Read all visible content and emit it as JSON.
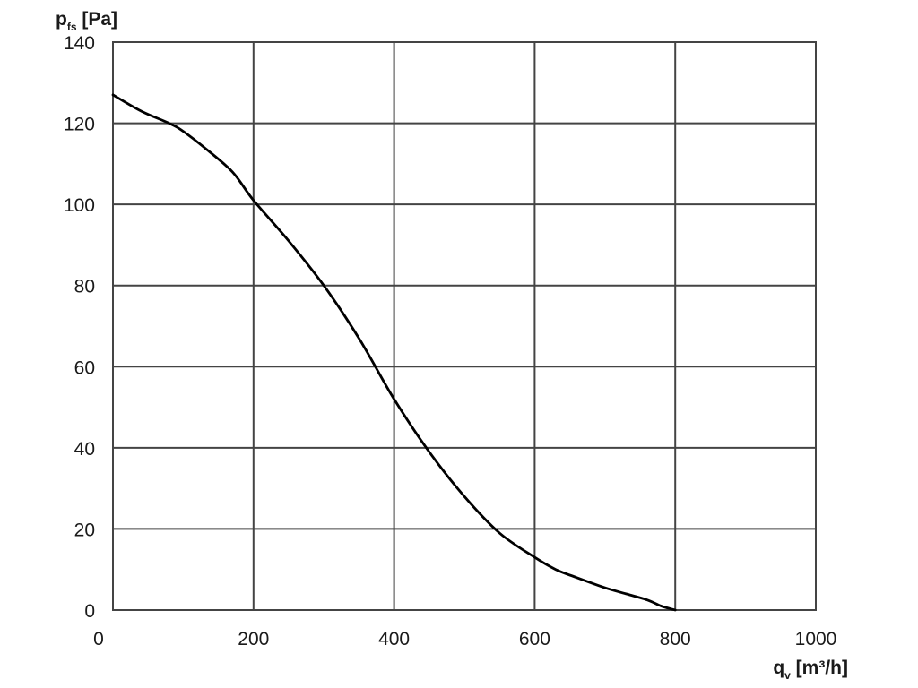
{
  "chart_data": {
    "type": "line",
    "ylabel": {
      "main": "p",
      "sub": "fs",
      "unit": " [Pa]"
    },
    "xlabel": {
      "main": "q",
      "sub": "v",
      "unit": " [m³/h]"
    },
    "xlim": [
      0,
      1000
    ],
    "ylim": [
      0,
      140
    ],
    "x_ticks": [
      "0",
      "200",
      "400",
      "600",
      "800",
      "1000"
    ],
    "y_ticks": [
      "0",
      "20",
      "40",
      "60",
      "80",
      "100",
      "120",
      "140"
    ],
    "grid": true,
    "series": [
      {
        "color": "#000000",
        "x": [
          0,
          40,
          80,
          100,
          130,
          170,
          200,
          250,
          300,
          350,
          400,
          450,
          500,
          550,
          600,
          630,
          660,
          700,
          730,
          760,
          780,
          800
        ],
        "y": [
          127,
          123,
          120,
          118,
          114,
          108,
          101,
          91,
          80,
          67,
          52,
          39,
          28,
          19,
          13,
          10,
          8,
          5.5,
          4,
          2.5,
          1,
          0
        ]
      }
    ]
  }
}
